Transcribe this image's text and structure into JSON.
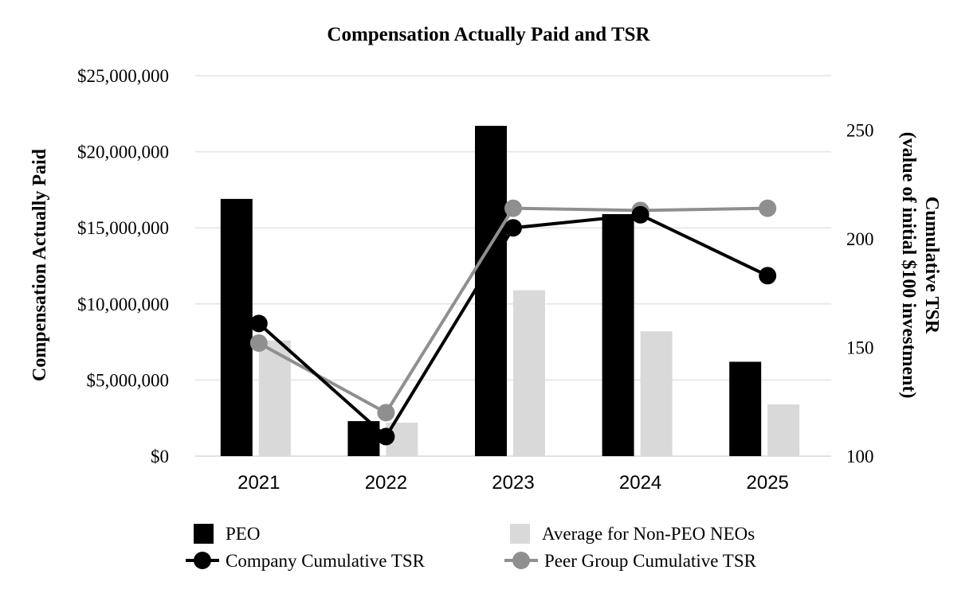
{
  "chart_data": {
    "type": "bar",
    "title": "Compensation Actually Paid and TSR",
    "categories": [
      "2021",
      "2022",
      "2023",
      "2024",
      "2025"
    ],
    "ylabel": "Compensation Actually Paid",
    "y2label_line1": "Cumulative TSR",
    "y2label_line2": "(value of initial $100 investment)",
    "ylim": [
      0,
      25000000
    ],
    "y2lim": [
      100,
      275
    ],
    "left_ticks": [
      0,
      5000000,
      10000000,
      15000000,
      20000000,
      25000000
    ],
    "left_tick_labels": [
      "$0",
      "$5,000,000",
      "$10,000,000",
      "$15,000,000",
      "$20,000,000",
      "$25,000,000"
    ],
    "right_ticks": [
      100,
      150,
      200,
      250
    ],
    "right_tick_labels": [
      "100",
      "150",
      "200",
      "250"
    ],
    "grid": true,
    "legend_position": "bottom",
    "series": [
      {
        "name": "PEO",
        "kind": "bar",
        "color": "#000000",
        "values": [
          16900000,
          2300000,
          21700000,
          15900000,
          6200000
        ]
      },
      {
        "name": "Average for Non-PEO NEOs",
        "kind": "bar",
        "color": "#d9d9d9",
        "values": [
          7600000,
          2200000,
          10900000,
          8200000,
          3400000
        ]
      },
      {
        "name": "Company Cumulative TSR",
        "kind": "line",
        "axis": "right",
        "color": "#000000",
        "values": [
          161,
          109,
          205,
          211,
          183
        ]
      },
      {
        "name": "Peer Group Cumulative TSR",
        "kind": "line",
        "axis": "right",
        "color": "#8f8f8f",
        "values": [
          152,
          120,
          214,
          213,
          214
        ]
      }
    ]
  }
}
